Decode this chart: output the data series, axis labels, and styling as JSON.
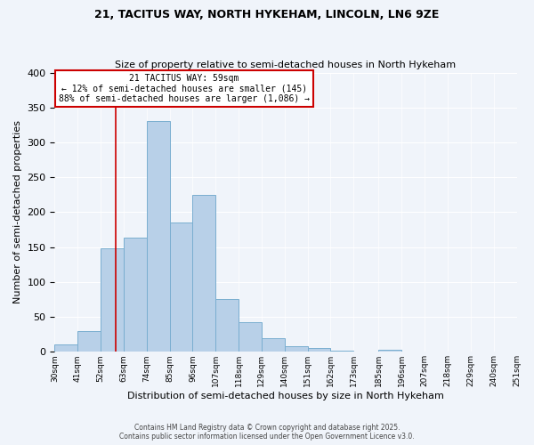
{
  "title": "21, TACITUS WAY, NORTH HYKEHAM, LINCOLN, LN6 9ZE",
  "subtitle": "Size of property relative to semi-detached houses in North Hykeham",
  "xlabel": "Distribution of semi-detached houses by size in North Hykeham",
  "ylabel": "Number of semi-detached properties",
  "bins": [
    30,
    41,
    52,
    63,
    74,
    85,
    96,
    107,
    118,
    129,
    140,
    151,
    162,
    173,
    185,
    196,
    207,
    218,
    229,
    240,
    251
  ],
  "counts": [
    10,
    30,
    148,
    163,
    330,
    185,
    225,
    75,
    43,
    20,
    8,
    5,
    2,
    1,
    3,
    1,
    0,
    0,
    0,
    1
  ],
  "bar_color": "#b8d0e8",
  "bar_edge_color": "#7aaed0",
  "property_line_x": 59,
  "property_line_color": "#cc0000",
  "annotation_title": "21 TACITUS WAY: 59sqm",
  "annotation_line1": "← 12% of semi-detached houses are smaller (145)",
  "annotation_line2": "88% of semi-detached houses are larger (1,086) →",
  "annotation_box_color": "#cc0000",
  "ylim": [
    0,
    400
  ],
  "yticks": [
    0,
    50,
    100,
    150,
    200,
    250,
    300,
    350,
    400
  ],
  "tick_labels": [
    "30sqm",
    "41sqm",
    "52sqm",
    "63sqm",
    "74sqm",
    "85sqm",
    "96sqm",
    "107sqm",
    "118sqm",
    "129sqm",
    "140sqm",
    "151sqm",
    "162sqm",
    "173sqm",
    "185sqm",
    "196sqm",
    "207sqm",
    "218sqm",
    "229sqm",
    "240sqm",
    "251sqm"
  ],
  "footer1": "Contains HM Land Registry data © Crown copyright and database right 2025.",
  "footer2": "Contains public sector information licensed under the Open Government Licence v3.0.",
  "background_color": "#f0f4fa",
  "plot_background": "#f0f4fa"
}
